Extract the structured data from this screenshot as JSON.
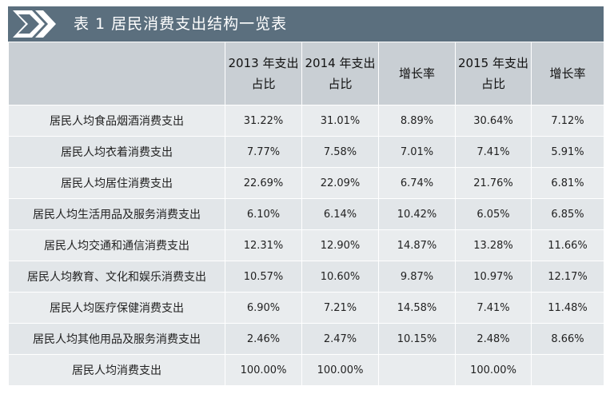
{
  "title": "表 1  居民消费支出结构一览表",
  "header": [
    "",
    "2013 年支出占比",
    "2014 年支出占比",
    "增长率",
    "2015 年支出占比",
    "增长率"
  ],
  "rows": [
    {
      "label": "居民人均食品烟酒消费支出",
      "values": [
        "31.22%",
        "31.01%",
        "8.89%",
        "30.64%",
        "7.12%"
      ]
    },
    {
      "label": "居民人均衣着消费支出",
      "values": [
        "7.77%",
        "7.58%",
        "7.01%",
        "7.41%",
        "5.91%"
      ]
    },
    {
      "label": "居民人均居住消费支出",
      "values": [
        "22.69%",
        "22.09%",
        "6.74%",
        "21.76%",
        "6.81%"
      ]
    },
    {
      "label": "居民人均生活用品及服务消费支出",
      "values": [
        "6.10%",
        "6.14%",
        "10.42%",
        "6.05%",
        "6.85%"
      ]
    },
    {
      "label": "居民人均交通和通信消费支出",
      "values": [
        "12.31%",
        "12.90%",
        "14.87%",
        "13.28%",
        "11.66%"
      ]
    },
    {
      "label": "居民人均教育、文化和娱乐消费支出",
      "values": [
        "10.57%",
        "10.60%",
        "9.87%",
        "10.97%",
        "12.17%"
      ]
    },
    {
      "label": "居民人均医疗保健消费支出",
      "values": [
        "6.90%",
        "7.21%",
        "14.58%",
        "7.41%",
        "11.48%"
      ]
    },
    {
      "label": "居民人均其他用品及服务消费支出",
      "values": [
        "2.46%",
        "2.47%",
        "10.15%",
        "2.48%",
        "8.66%"
      ]
    },
    {
      "label": "居民人均消费支出",
      "values": [
        "100.00%",
        "100.00%",
        "",
        "100.00%",
        ""
      ]
    }
  ],
  "colors": {
    "title_bar": "#5b6f7e",
    "header_bg": "#c9cfd4",
    "row_bg": "#e9ecee"
  },
  "icons": {
    "title_marker": "chevron-arrow-icon"
  }
}
